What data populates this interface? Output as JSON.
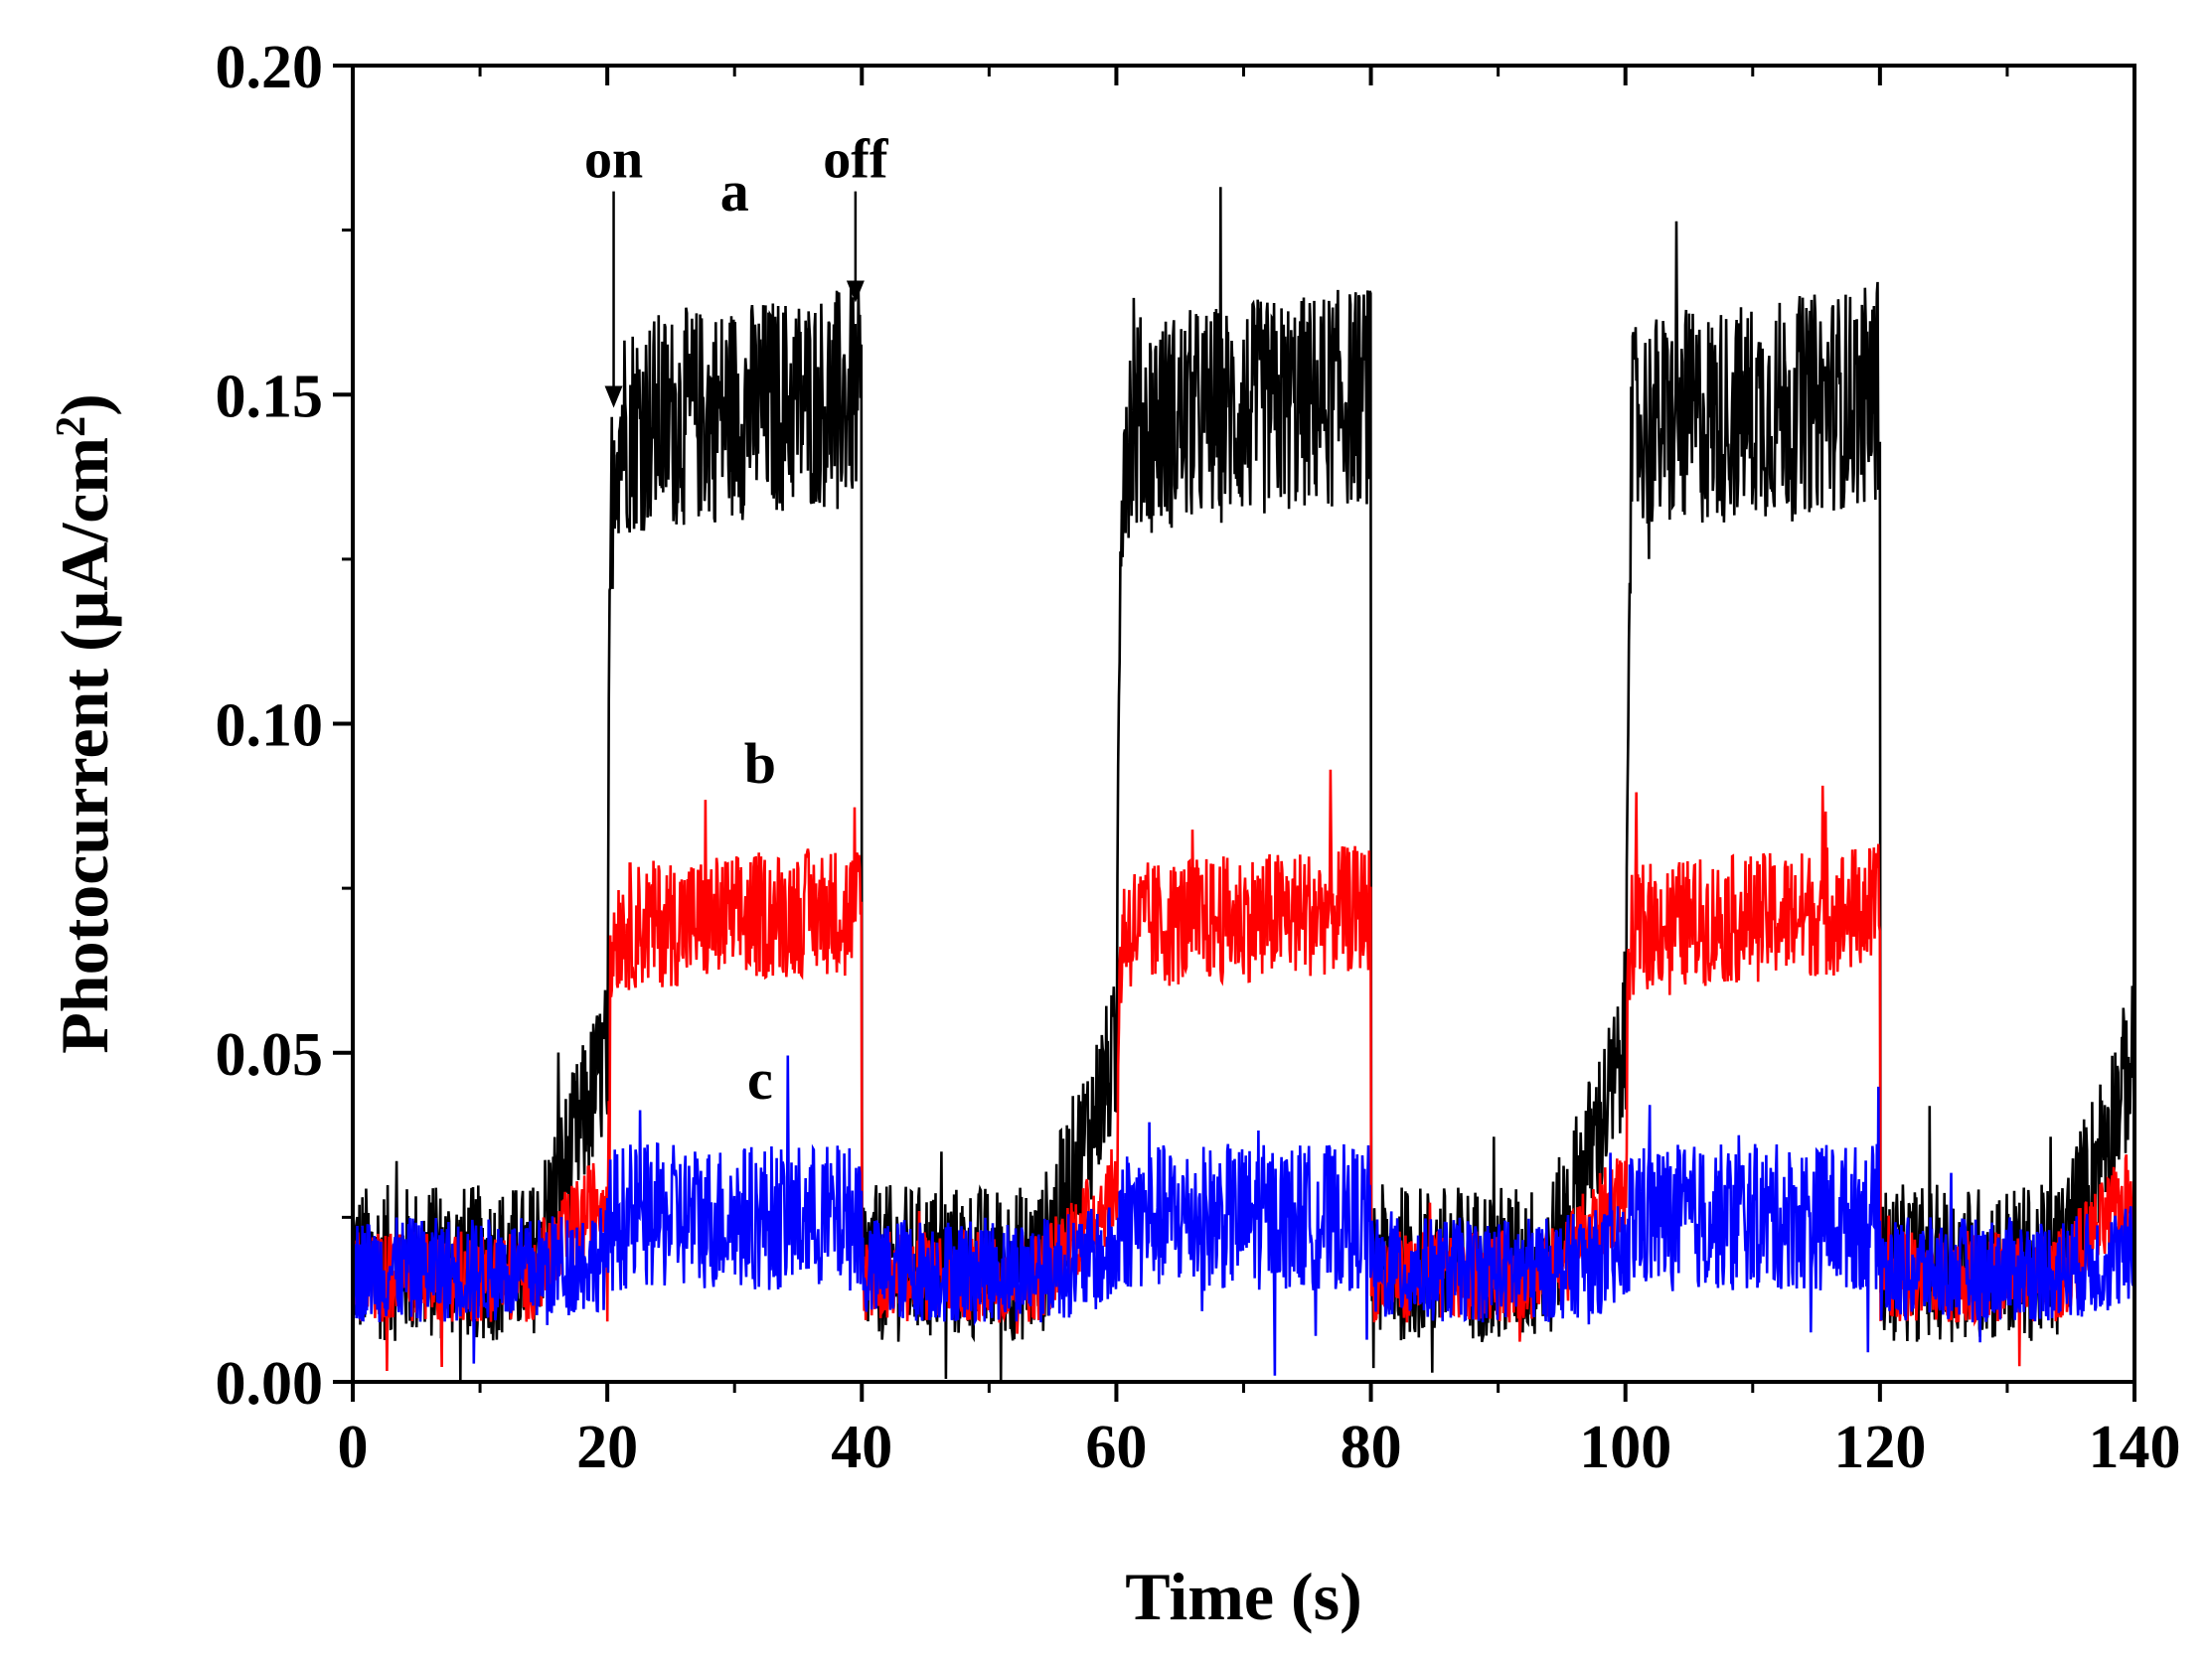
{
  "chart_data": {
    "type": "line",
    "title": "",
    "xlabel": "Time (s)",
    "ylabel_main": "Photocurrent (μA/cm",
    "ylabel_sup": "2",
    "ylabel_tail": ")",
    "xlim": [
      0,
      140
    ],
    "ylim": [
      0,
      0.2
    ],
    "x_ticks": [
      0,
      20,
      40,
      60,
      80,
      100,
      120,
      140
    ],
    "x_tick_labels": [
      "0",
      "20",
      "40",
      "60",
      "80",
      "100",
      "120",
      "140"
    ],
    "y_ticks": [
      0,
      0.05,
      0.1,
      0.15,
      0.2
    ],
    "y_tick_labels": [
      "0.00",
      "0.05",
      "0.10",
      "0.15",
      "0.20"
    ],
    "grid": false,
    "legend": "none",
    "light_cycles": [
      [
        20,
        40
      ],
      [
        60,
        80
      ],
      [
        100,
        120
      ]
    ],
    "series": [
      {
        "label": "a",
        "color": "#000000",
        "dark_level": 0.018,
        "light_level": 0.145,
        "end_level": 0.15,
        "noise": 0.012,
        "label_pos": [
          30,
          0.178
        ]
      },
      {
        "label": "b",
        "color": "#ff0000",
        "dark_level": 0.016,
        "light_level": 0.069,
        "end_level": 0.072,
        "noise": 0.007,
        "label_pos": [
          32,
          0.091
        ]
      },
      {
        "label": "c",
        "color": "#0000ff",
        "dark_level": 0.017,
        "light_level": 0.025,
        "end_level": 0.025,
        "noise": 0.008,
        "label_pos": [
          32,
          0.043
        ]
      }
    ],
    "annotations": [
      {
        "text": "on",
        "x": 20.5,
        "text_y": 0.183,
        "arrow_to": 0.148
      },
      {
        "text": "off",
        "x": 39.5,
        "text_y": 0.183,
        "arrow_to": 0.164
      }
    ]
  }
}
